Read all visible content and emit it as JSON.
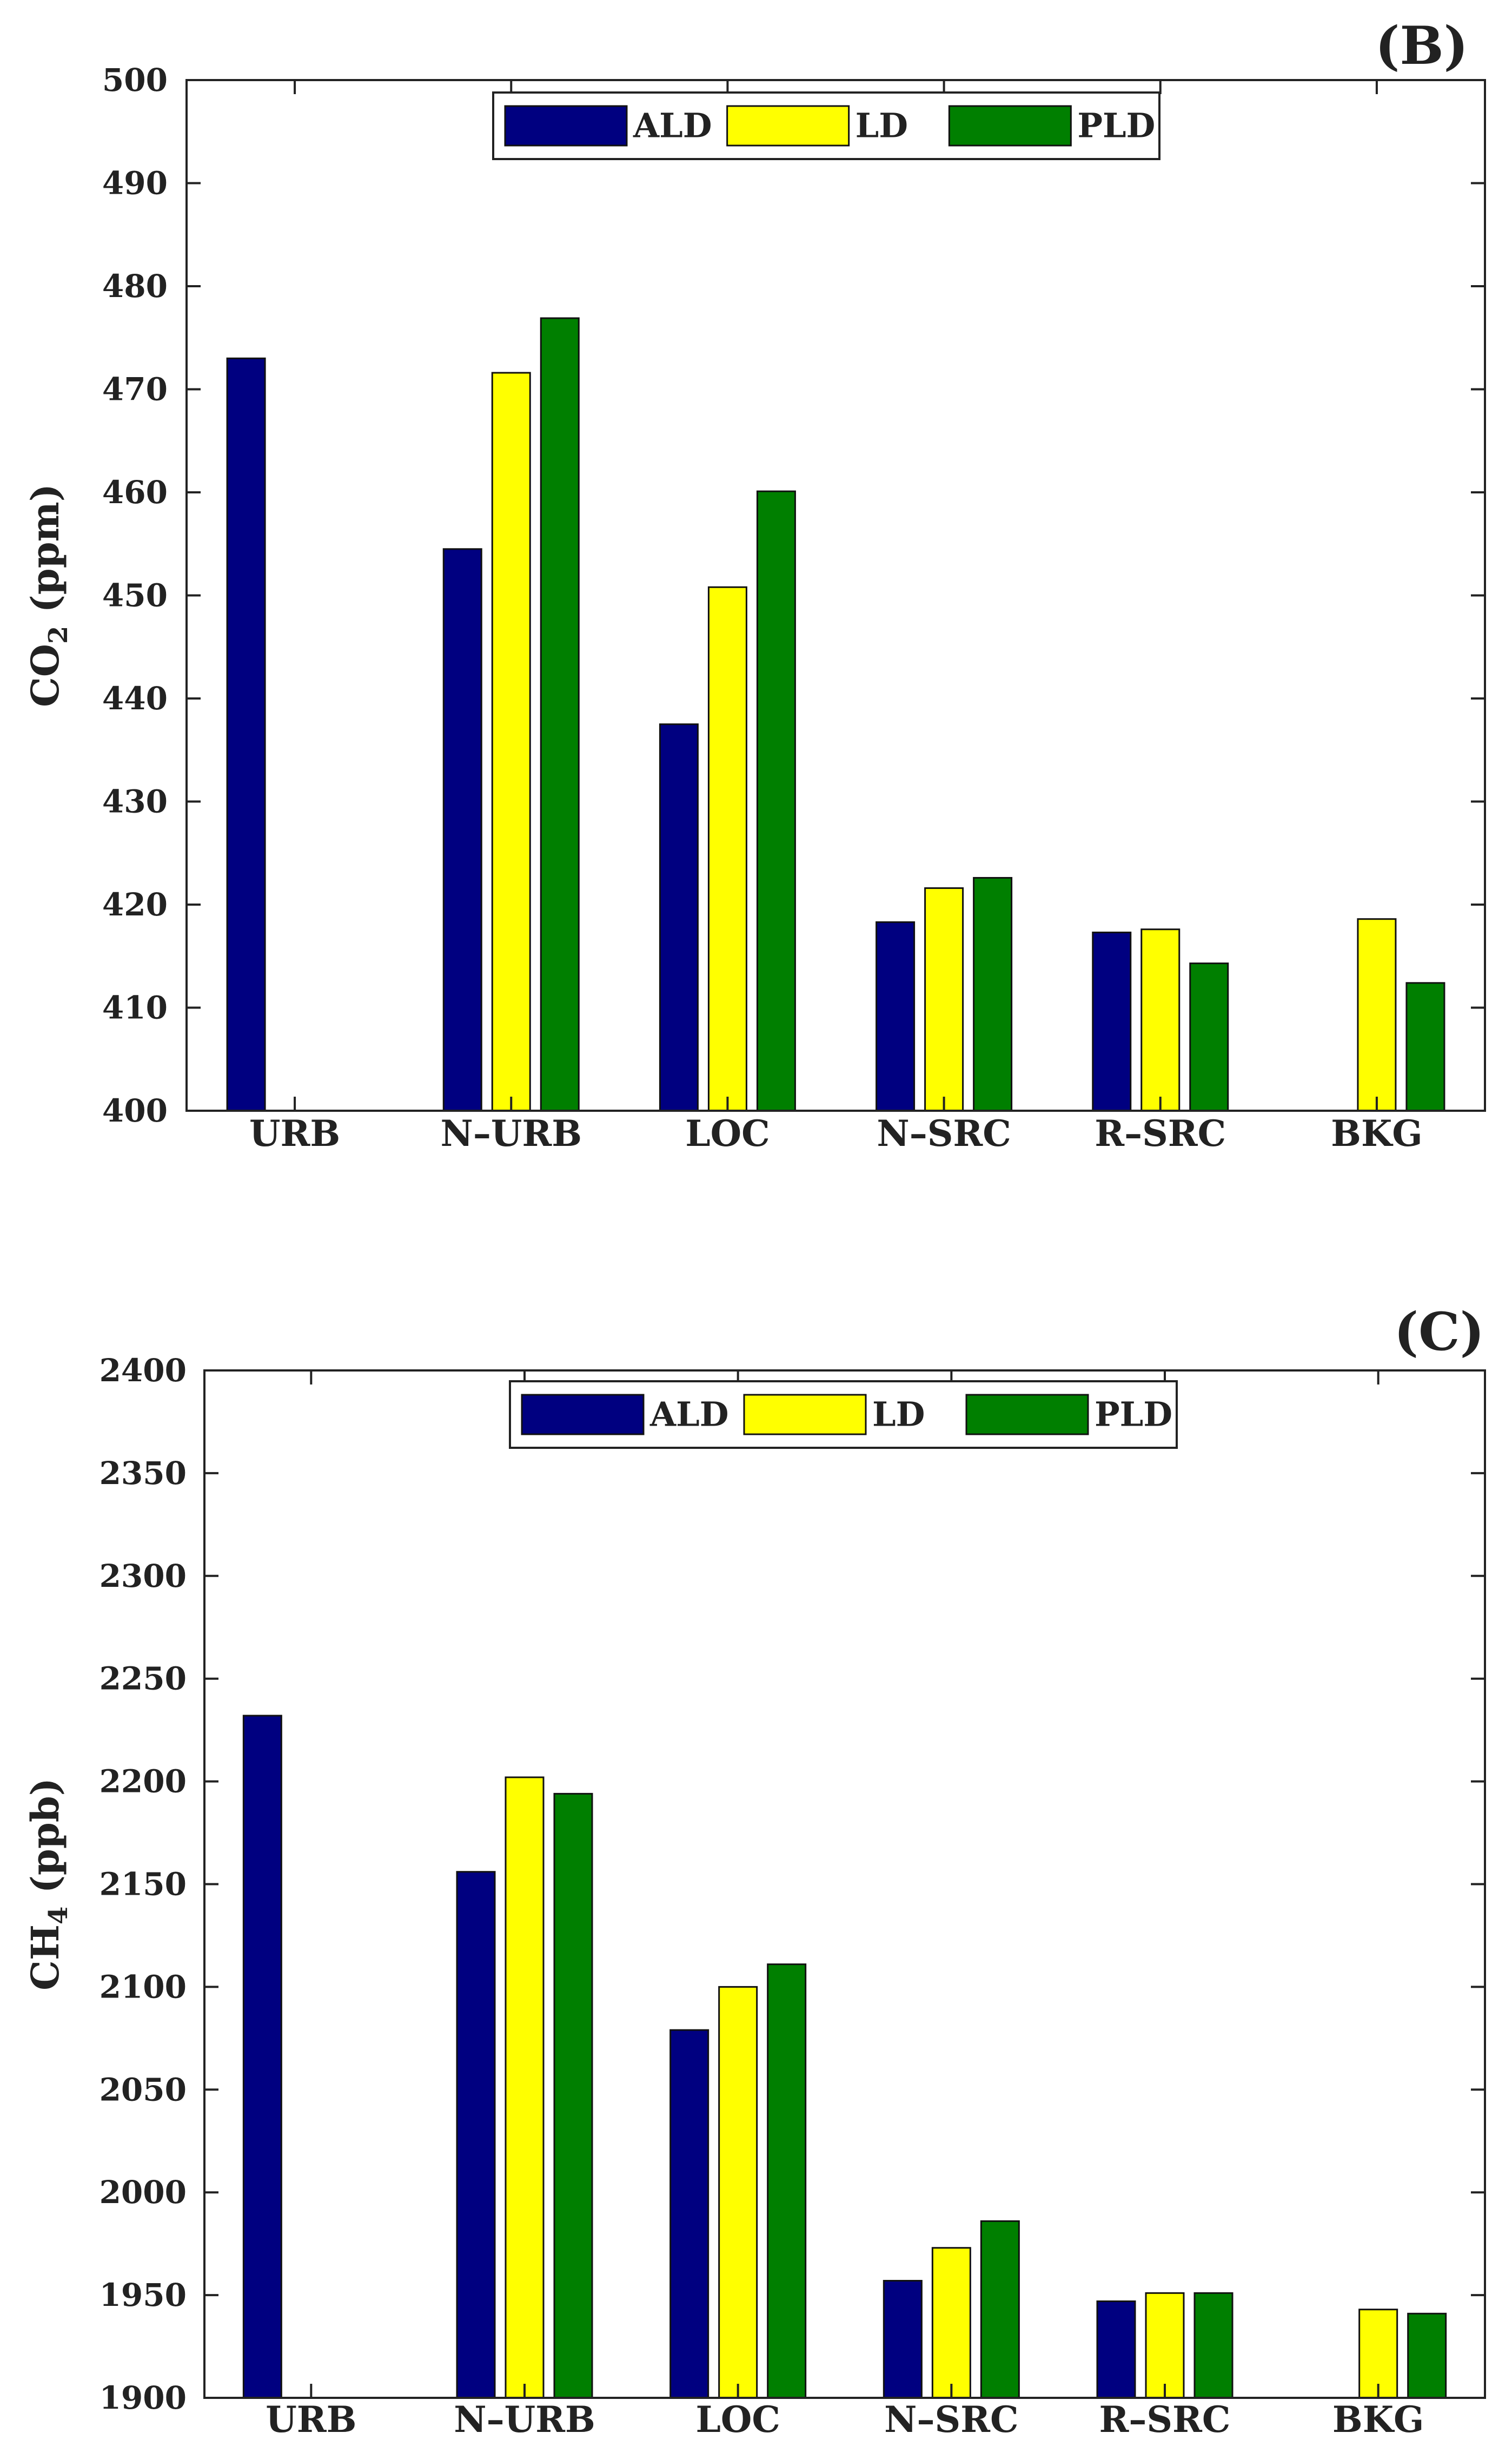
{
  "colors": {
    "ALD": "#000080",
    "LD": "#ffff00",
    "PLD": "#007f00",
    "axis": "#222222",
    "bar_edge": "#111111"
  },
  "chart_data": [
    {
      "type": "bar",
      "panel": "(B)",
      "ylabel": {
        "main": "CO",
        "sub": "2",
        "unit": " (ppm)"
      },
      "ylim": [
        400,
        500
      ],
      "yticks": [
        400,
        410,
        420,
        430,
        440,
        450,
        460,
        470,
        480,
        490,
        500
      ],
      "categories": [
        "URB",
        "N–URB",
        "LOC",
        "N–SRC",
        "R–SRC",
        "BKG"
      ],
      "legend": [
        "ALD",
        "LD",
        "PLD"
      ],
      "series": [
        {
          "name": "ALD",
          "values": [
            473,
            454.5,
            437.5,
            418.3,
            417.3,
            null
          ]
        },
        {
          "name": "LD",
          "values": [
            null,
            471.6,
            450.8,
            421.6,
            417.6,
            418.6
          ]
        },
        {
          "name": "PLD",
          "values": [
            null,
            476.9,
            460.1,
            422.6,
            414.3,
            412.4
          ]
        }
      ]
    },
    {
      "type": "bar",
      "panel": "(C)",
      "ylabel": {
        "main": "CH",
        "sub": "4",
        "unit": " (ppb)"
      },
      "ylim": [
        1900,
        2400
      ],
      "yticks": [
        1900,
        1950,
        2000,
        2050,
        2100,
        2150,
        2200,
        2250,
        2300,
        2350,
        2400
      ],
      "categories": [
        "URB",
        "N–URB",
        "LOC",
        "N–SRC",
        "R–SRC",
        "BKG"
      ],
      "legend": [
        "ALD",
        "LD",
        "PLD"
      ],
      "series": [
        {
          "name": "ALD",
          "values": [
            2232,
            2156,
            2079,
            1957,
            1947,
            null
          ]
        },
        {
          "name": "LD",
          "values": [
            null,
            2202,
            2100,
            1973,
            1951,
            1943
          ]
        },
        {
          "name": "PLD",
          "values": [
            null,
            2194,
            2111,
            1986,
            1951,
            1941
          ]
        }
      ]
    }
  ]
}
